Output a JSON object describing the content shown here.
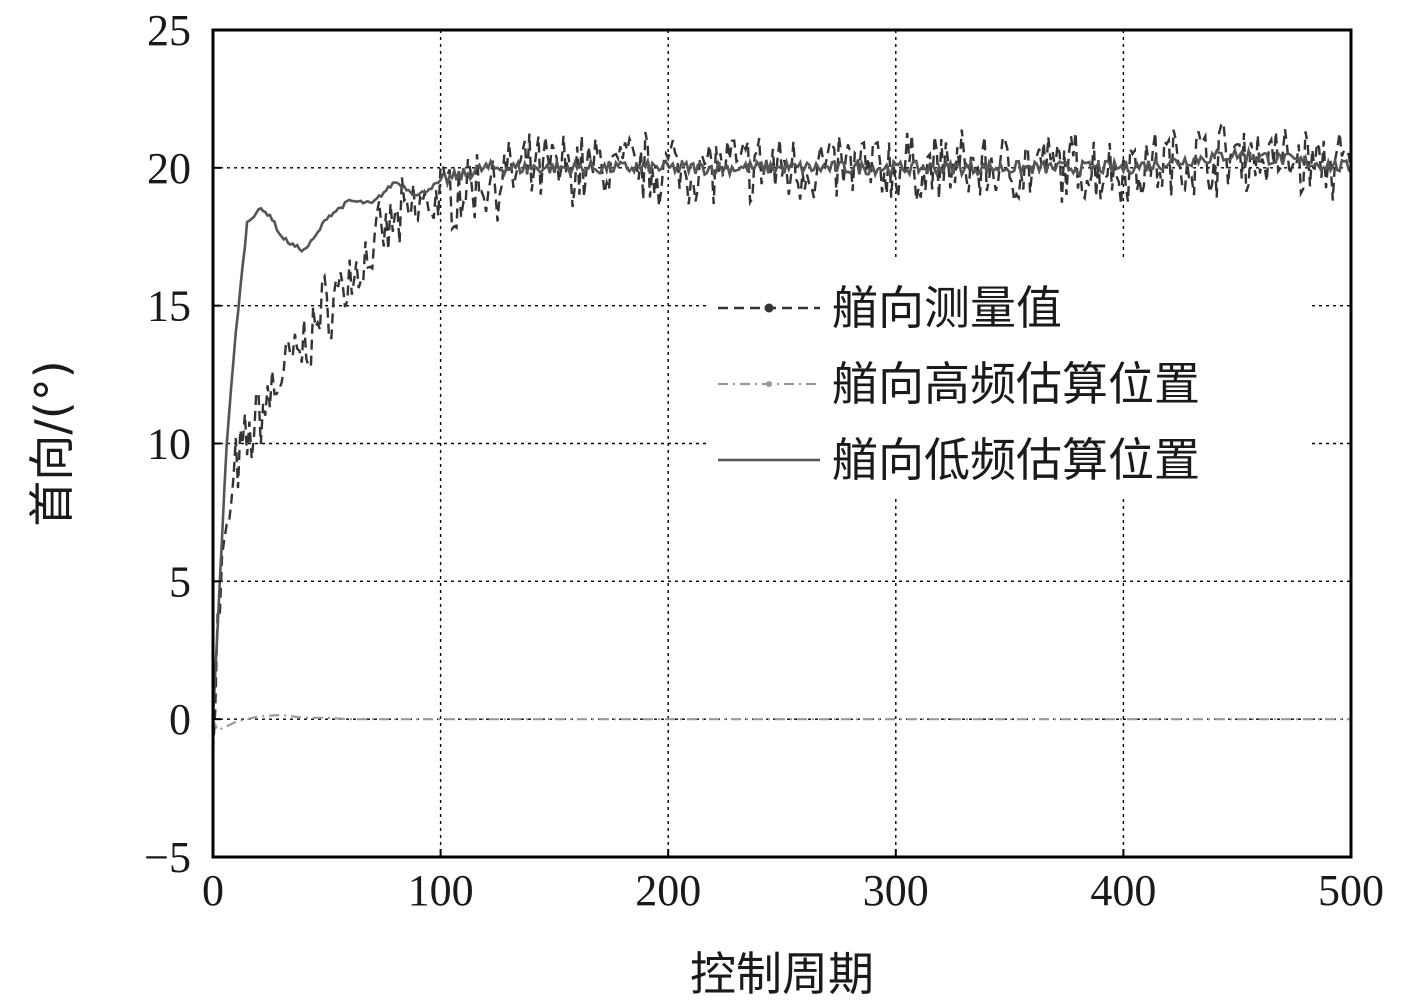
{
  "chart_data": {
    "type": "line",
    "title": "",
    "xlabel": "控制周期",
    "ylabel": "首向/(°)",
    "xlim": [
      0,
      500
    ],
    "ylim": [
      -5,
      25
    ],
    "xticks": [
      0,
      100,
      200,
      300,
      400,
      500
    ],
    "yticks": [
      -5,
      0,
      5,
      10,
      15,
      20,
      25
    ],
    "grid": true,
    "legend_position": "center-right",
    "series": [
      {
        "name": "艏向测量值",
        "style": "dashed-with-dots",
        "color": "#333333",
        "noise_amplitude": 1.1,
        "x": [
          0,
          2,
          5,
          10,
          15,
          20,
          30,
          40,
          50,
          60,
          70,
          80,
          90,
          100,
          120,
          150,
          200,
          250,
          300,
          350,
          400,
          450,
          500
        ],
        "y": [
          0,
          3,
          6,
          9,
          10,
          11,
          12.5,
          13.5,
          15,
          16,
          17,
          18,
          18.5,
          19,
          19.5,
          20,
          20,
          20,
          20,
          20,
          20,
          20.5,
          20
        ]
      },
      {
        "name": "艏向高频估算位置",
        "style": "dash-dot",
        "color": "#999999",
        "x": [
          0,
          2,
          5,
          10,
          20,
          30,
          40,
          50,
          60,
          100,
          200,
          300,
          400,
          500
        ],
        "y": [
          0,
          -0.4,
          -0.3,
          -0.1,
          0.1,
          0.15,
          0.05,
          0.05,
          0,
          0,
          0,
          0,
          0,
          0
        ]
      },
      {
        "name": "艏向低频估算位置",
        "style": "solid",
        "color": "#555555",
        "x": [
          0,
          3,
          6,
          10,
          15,
          20,
          25,
          30,
          35,
          40,
          45,
          50,
          55,
          60,
          70,
          80,
          90,
          100,
          120,
          150,
          200,
          250,
          300,
          350,
          400,
          450,
          500
        ],
        "y": [
          0,
          5,
          10,
          14,
          18,
          18.5,
          18.3,
          17.5,
          17.2,
          17,
          17.5,
          18.2,
          18.5,
          18.8,
          18.7,
          19.5,
          19,
          19.5,
          20,
          20,
          20,
          20,
          20,
          20,
          20,
          20.5,
          20
        ]
      }
    ]
  }
}
